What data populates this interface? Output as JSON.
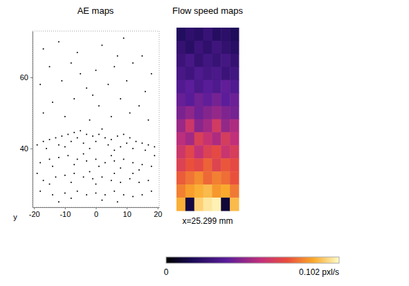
{
  "chart_data": [
    {
      "type": "scatter",
      "title": "AE maps",
      "annotation": "y",
      "color": "#000000",
      "marker": "dot",
      "xlim": [
        -20.5,
        20.5
      ],
      "ylim": [
        23.5,
        73
      ],
      "xticks": [
        -20,
        -10,
        0,
        10,
        20
      ],
      "yticks": [
        40,
        60
      ],
      "x": [
        -17,
        -12,
        -6,
        2,
        9,
        15,
        -15,
        -8,
        0,
        6,
        12,
        18,
        -18,
        -11,
        -3,
        4,
        10,
        16,
        -14,
        -7,
        1,
        8,
        14,
        -17,
        -10,
        -2,
        5,
        11,
        17,
        -5,
        7,
        -1,
        -19,
        -17,
        -15,
        -13,
        -11,
        -9,
        -7,
        -5,
        -3,
        -1,
        1,
        3,
        5,
        7,
        9,
        11,
        13,
        15,
        17,
        19,
        -16,
        -12,
        -8,
        -4,
        0,
        4,
        8,
        12,
        16,
        -10,
        -2,
        6,
        -6,
        2,
        10,
        -18,
        -15,
        -12,
        -9,
        -6,
        -3,
        0,
        3,
        6,
        9,
        12,
        15,
        18,
        -14,
        -7,
        1,
        8,
        14,
        -4,
        5,
        -17,
        -13,
        -10,
        -7,
        -4,
        -1,
        2,
        5,
        8,
        11,
        14,
        17,
        -15,
        -8,
        0,
        6,
        12,
        -2,
        -14,
        -10,
        -6,
        -3,
        0,
        3,
        6,
        9,
        12,
        -8,
        2,
        15,
        -12,
        7,
        -18,
        18,
        -19,
        19
      ],
      "values": [
        68,
        70,
        67,
        69,
        71,
        66,
        63,
        64,
        62,
        63,
        64,
        61,
        58,
        59,
        57,
        58,
        59,
        56,
        53,
        54,
        52,
        54,
        52,
        50,
        49,
        48,
        49,
        50,
        48,
        61,
        66,
        55,
        41,
        42,
        42.5,
        43,
        43.5,
        44,
        44.5,
        45,
        44,
        43.5,
        44,
        43,
        42.5,
        43.5,
        44,
        43,
        42,
        41.5,
        41,
        40.5,
        40,
        41,
        42,
        41.5,
        42,
        41,
        40.5,
        40,
        39.5,
        40.5,
        40,
        39.5,
        43,
        45.5,
        41.5,
        36,
        37,
        37.5,
        38,
        37,
        36.5,
        37,
        36,
        36.5,
        37,
        36,
        35.5,
        35,
        35,
        35.5,
        35,
        34.5,
        34,
        38.5,
        38,
        31,
        32,
        32.5,
        33,
        32,
        31.5,
        32,
        31,
        30.5,
        31.5,
        30.5,
        31,
        30,
        30.5,
        30,
        33,
        33,
        33.5,
        27,
        27.5,
        28,
        27,
        27.5,
        27,
        28,
        27,
        26.5,
        26,
        25.5,
        27,
        25,
        25,
        28,
        28,
        33,
        38
      ]
    },
    {
      "type": "heatmap",
      "title": "Flow speed maps",
      "annotation": "x=25.299 mm",
      "tick_labels": false,
      "cells": [
        [
          0.018,
          0.022,
          0.02,
          0.025,
          0.019,
          0.021,
          0.017
        ],
        [
          0.024,
          0.02,
          0.026,
          0.022,
          0.027,
          0.023,
          0.02
        ],
        [
          0.026,
          0.03,
          0.024,
          0.028,
          0.025,
          0.029,
          0.024
        ],
        [
          0.03,
          0.027,
          0.032,
          0.029,
          0.031,
          0.026,
          0.028
        ],
        [
          0.033,
          0.036,
          0.031,
          0.035,
          0.032,
          0.037,
          0.033
        ],
        [
          0.038,
          0.035,
          0.04,
          0.037,
          0.041,
          0.036,
          0.039
        ],
        [
          0.042,
          0.046,
          0.04,
          0.044,
          0.047,
          0.043,
          0.041
        ],
        [
          0.048,
          0.06,
          0.045,
          0.05,
          0.062,
          0.047,
          0.052
        ],
        [
          0.055,
          0.05,
          0.065,
          0.058,
          0.052,
          0.063,
          0.056
        ],
        [
          0.06,
          0.068,
          0.057,
          0.066,
          0.07,
          0.059,
          0.064
        ],
        [
          0.066,
          0.072,
          0.069,
          0.075,
          0.067,
          0.073,
          0.07
        ],
        [
          0.074,
          0.078,
          0.082,
          0.076,
          0.08,
          0.077,
          0.072
        ],
        [
          0.08,
          0.085,
          0.088,
          0.09,
          0.084,
          0.087,
          0.079
        ],
        [
          0.088,
          0.012,
          0.094,
          0.098,
          0.1,
          0.01,
          0.09
        ]
      ],
      "colorbar_lim": [
        0,
        0.102
      ],
      "colorbar_ticks": [
        0,
        {
          "value": 0.102,
          "label": "0.102 pxl/s"
        }
      ]
    }
  ]
}
